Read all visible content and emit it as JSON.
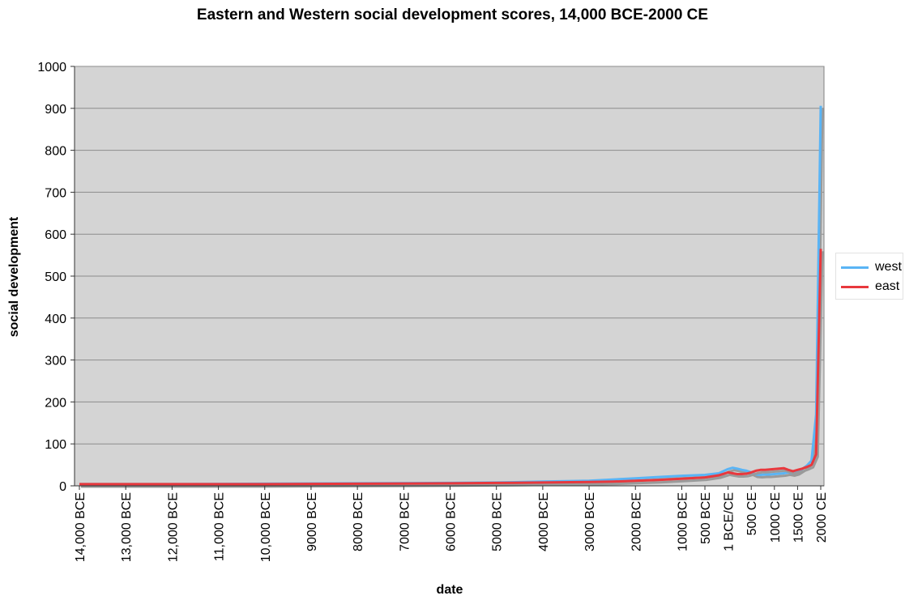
{
  "chart_data": {
    "type": "line",
    "title": "Eastern and Western social development scores, 14,000 BCE-2000 CE",
    "xlabel": "date",
    "ylabel": "social development",
    "ylim": [
      0,
      1000
    ],
    "yticks": [
      0,
      100,
      200,
      300,
      400,
      500,
      600,
      700,
      800,
      900,
      1000
    ],
    "xlim": [
      -14000,
      2000
    ],
    "xticks": [
      {
        "value": -14000,
        "label": "14,000 BCE"
      },
      {
        "value": -13000,
        "label": "13,000 BCE"
      },
      {
        "value": -12000,
        "label": "12,000 BCE"
      },
      {
        "value": -11000,
        "label": "11,000 BCE"
      },
      {
        "value": -10000,
        "label": "10,000 BCE"
      },
      {
        "value": -9000,
        "label": "9000 BCE"
      },
      {
        "value": -8000,
        "label": "8000 BCE"
      },
      {
        "value": -7000,
        "label": "7000 BCE"
      },
      {
        "value": -6000,
        "label": "6000 BCE"
      },
      {
        "value": -5000,
        "label": "5000 BCE"
      },
      {
        "value": -4000,
        "label": "4000 BCE"
      },
      {
        "value": -3000,
        "label": "3000 BCE"
      },
      {
        "value": -2000,
        "label": "2000 BCE"
      },
      {
        "value": -1000,
        "label": "1000 BCE"
      },
      {
        "value": -500,
        "label": "500 BCE"
      },
      {
        "value": 0,
        "label": "1 BCE/CE"
      },
      {
        "value": 500,
        "label": "500 CE"
      },
      {
        "value": 1000,
        "label": "1000 CE"
      },
      {
        "value": 1500,
        "label": "1500 CE"
      },
      {
        "value": 2000,
        "label": "2000 CE"
      }
    ],
    "grid": true,
    "legend_position": "right",
    "series": [
      {
        "name": "west",
        "color": "#5ab4f5",
        "x": [
          -14000,
          -12000,
          -10000,
          -8000,
          -6000,
          -5000,
          -4000,
          -3000,
          -2500,
          -2000,
          -1500,
          -1000,
          -500,
          -200,
          0,
          100,
          200,
          300,
          400,
          500,
          600,
          700,
          800,
          900,
          1000,
          1100,
          1200,
          1300,
          1400,
          1500,
          1600,
          1700,
          1800,
          1900,
          2000
        ],
        "values": [
          4,
          4,
          5,
          6,
          7,
          8,
          10,
          12,
          15,
          18,
          21,
          24,
          26,
          30,
          40,
          43,
          41,
          38,
          36,
          32,
          27,
          26,
          27,
          27,
          28,
          29,
          30,
          32,
          30,
          33,
          40,
          48,
          60,
          170,
          906
        ]
      },
      {
        "name": "east",
        "color": "#e8383d",
        "x": [
          -14000,
          -12000,
          -10000,
          -8000,
          -6000,
          -5000,
          -4000,
          -3000,
          -2500,
          -2000,
          -1500,
          -1000,
          -500,
          -200,
          0,
          100,
          200,
          300,
          400,
          500,
          600,
          700,
          800,
          900,
          1000,
          1100,
          1200,
          1300,
          1400,
          1500,
          1600,
          1700,
          1800,
          1900,
          2000
        ],
        "values": [
          4,
          4,
          4,
          5,
          6,
          7,
          8,
          9,
          10,
          12,
          14,
          17,
          20,
          25,
          32,
          30,
          28,
          28,
          29,
          32,
          36,
          38,
          38,
          39,
          40,
          41,
          42,
          38,
          35,
          38,
          41,
          45,
          50,
          75,
          565
        ]
      }
    ]
  }
}
